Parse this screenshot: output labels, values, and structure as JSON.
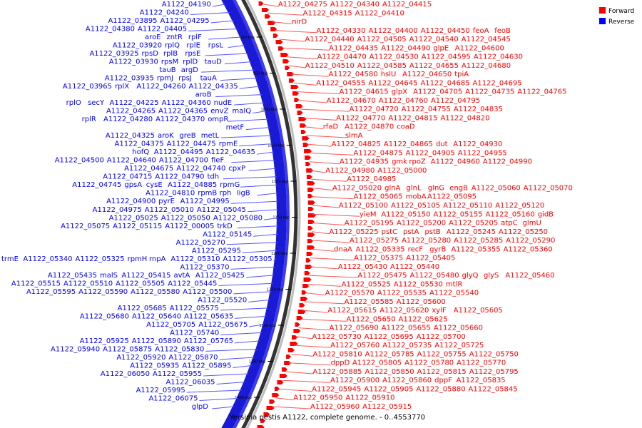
{
  "caption": "Yersinia pestis A1122, complete genome. - 0..4553770",
  "legend": [
    {
      "label": "Forward",
      "color": "#ff0000"
    },
    {
      "label": "Reverse",
      "color": "#0000ff"
    }
  ],
  "colors": {
    "forward": "#ff0000",
    "reverse": "#0000ff",
    "forward_leader": "#ff5555",
    "reverse_leader": "#5555ff"
  },
  "ticks": [
    "900 kbp",
    "950 kbp",
    "1000 kbp",
    "1050 kbp",
    "1100 kbp",
    "1150 kbp",
    "1200 kbp",
    "1250 kbp",
    "1300 kbp",
    "1350 kbp",
    "1400 kbp"
  ],
  "reverse_rows": [
    [
      "A1122_04190"
    ],
    [
      "A1122_04240"
    ],
    [
      "A1122_03895",
      "A1122_04295"
    ],
    [
      "A1122_04380",
      "A1122_04405"
    ],
    [
      "aroE",
      "zntR",
      "rplF"
    ],
    [
      "A1122_03920",
      "rplQ",
      "rplE",
      "rpsL"
    ],
    [
      "A1122_03925",
      "rpsD",
      "rplB",
      "rpsE"
    ],
    [
      "A1122_03930",
      "rpsM",
      "rplD",
      "tauD"
    ],
    [
      "tauB",
      "argD"
    ],
    [
      "A1122_03935",
      "rpmJ",
      "rpsJ",
      "tauA"
    ],
    [
      "A1122_03965",
      "rplX",
      "A1122_04260",
      "A1122_04335"
    ],
    [
      "aroB"
    ],
    [
      "rplO",
      "secY",
      "A1122_04225",
      "A1122_04360",
      "nudE"
    ],
    [
      "A1122_04265",
      "A1122_04365",
      "envZ",
      "malQ"
    ],
    [
      "rplR",
      "A1122_04280",
      "A1122_04370",
      "ompR"
    ],
    [
      "metF"
    ],
    [
      "A1122_04325",
      "aroK",
      "greB",
      "metL"
    ],
    [
      "A1122_04375",
      "A1122_04475",
      "rpmE"
    ],
    [
      "hofQ",
      "A1122_04495",
      "A1122_04635"
    ],
    [
      "A1122_04500",
      "A1122_04640",
      "A1122_04700",
      "fieF"
    ],
    [
      "A1122_04675",
      "A1122_04740",
      "cpxP"
    ],
    [
      "A1122_04715",
      "A1122_04790",
      "tdh"
    ],
    [
      "A1122_04745",
      "gpsA",
      "cysE",
      "A1122_04885",
      "rpmG"
    ],
    [
      "A1122_04810",
      "rpmB",
      "rph",
      "ligB"
    ],
    [
      "A1122_04900",
      "pyrE",
      "A1122_04995"
    ],
    [
      "A1122_04975",
      "A1122_05010",
      "A1122_05045"
    ],
    [
      "A1122_05025",
      "A1122_05050",
      "A1122_05080"
    ],
    [
      "A1122_05075",
      "A1122_05115",
      "A1122_00005",
      "trkD"
    ],
    [
      "A1122_05145"
    ],
    [
      "A1122_05270"
    ],
    [
      "A1122_05295"
    ],
    [
      "trmE",
      "A1122_05340",
      "A1122_05325",
      "rpmH",
      "rnpA",
      "A1122_05310",
      "A1122_05305"
    ],
    [
      "A1122_05370"
    ],
    [
      "A1122_05435",
      "malS",
      "A1122_05415",
      "avtA",
      "A1122_05425"
    ],
    [
      "A1122_05515",
      "A1122_05510",
      "A1122_05505",
      "A1122_05445"
    ],
    [
      "A1122_05595",
      "A1122_05590",
      "A1122_05580",
      "A1122_05500"
    ],
    [
      "A1122_05520"
    ],
    [
      "A1122_05685",
      "A1122_05575"
    ],
    [
      "A1122_05680",
      "A1122_05640",
      "A1122_05635"
    ],
    [
      "A1122_05705",
      "A1122_05675"
    ],
    [
      "A1122_05740"
    ],
    [
      "A1122_05925",
      "A1122_05890",
      "A1122_05765"
    ],
    [
      "A1122_05940",
      "A1122_05875",
      "A1122_05830"
    ],
    [
      "A1122_05920",
      "A1122_05870"
    ],
    [
      "A1122_05935",
      "A1122_05895"
    ],
    [
      "A1122_06050",
      "A1122_05955"
    ],
    [
      "A1122_06035"
    ],
    [
      "A1122_05995"
    ],
    [
      "A1122_06075"
    ],
    [
      "glpD"
    ]
  ],
  "forward_rows": [
    [
      "A1122_04275",
      "A1122_04340",
      "A1122_04415"
    ],
    [
      "A1122_04315",
      "A1122_04410"
    ],
    [
      "nirD"
    ],
    [
      "A1122_04330",
      "A1122_04400",
      "A1122_04450",
      "feoA",
      "feoB"
    ],
    [
      "A1122_04440",
      "A1122_04505",
      "A1122_04540",
      "A1122_04545"
    ],
    [
      "A1122_04435",
      "A1122_04490",
      "glpE",
      "A1122_04600"
    ],
    [
      "A1122_04470",
      "A1122_04530",
      "A1122_04595",
      "A1122_04630"
    ],
    [
      "A1122_04510",
      "A1122_04585",
      "A1122_04655",
      "A1122_04680"
    ],
    [
      "A1122_04580",
      "hslU",
      "A1122_04650",
      "tpiA"
    ],
    [
      "A1122_04555",
      "A1122_04645",
      "A1122_04685",
      "A1122_04695"
    ],
    [
      "A1122_04615",
      "glpX",
      "A1122_04705",
      "A1122_04735",
      "A1122_04765"
    ],
    [
      "A1122_04670",
      "A1122_04760",
      "A1122_04795"
    ],
    [
      "A1122_04720",
      "A1122_04755",
      "A1122_04835"
    ],
    [
      "A1122_04770",
      "A1122_04815",
      "A1122_04820"
    ],
    [
      "rfaD",
      "A1122_04870",
      "coaD"
    ],
    [
      "slmA"
    ],
    [
      "A1122_04825",
      "A1122_04865",
      "dut",
      "A1122_04930"
    ],
    [
      "A1122_04875",
      "A1122_04905",
      "A1122_04955"
    ],
    [
      "A1122_04935",
      "gmk",
      "rpoZ",
      "A1122_04960",
      "A1122_04990"
    ],
    [
      "A1122_04980",
      "A1122_05000"
    ],
    [
      "A1122_04985"
    ],
    [
      "A1122_05020",
      "glnA",
      "glnL",
      "glnG",
      "engB",
      "A1122_05060",
      "A1122_05070"
    ],
    [
      "A1122_05065",
      "mobA",
      "A1122_05095"
    ],
    [
      "A1122_05100",
      "A1122_05105",
      "A1122_05110",
      "A1122_05120"
    ],
    [
      "yieM",
      "A1122_05150",
      "A1122_05155",
      "A1122_05160",
      "gidB"
    ],
    [
      "A1122_05195",
      "A1122_05200",
      "A1122_05205",
      "atpC",
      "glmU"
    ],
    [
      "A1122_05225",
      "pstC",
      "pstA",
      "pstB",
      "A1122_05245",
      "A1122_05250"
    ],
    [
      "A1122_05275",
      "A1122_05280",
      "A1122_05285",
      "A1122_05290"
    ],
    [
      "dnaA",
      "A1122_05335",
      "recF",
      "gyrB",
      "A1122_05355",
      "A1122_05360"
    ],
    [
      "A1122_05375",
      "A1122_05405"
    ],
    [
      "A1122_05430",
      "A1122_05440"
    ],
    [
      "A1122_05475",
      "A1122_05480",
      "glyQ",
      "glyS",
      "A1122_05460"
    ],
    [
      "A1122_05525",
      "A1122_05530",
      "mtlR"
    ],
    [
      "A1122_05570",
      "A1122_05535",
      "A1122_05540"
    ],
    [
      "A1122_05585",
      "A1122_05600"
    ],
    [
      "A1122_05615",
      "A1122_05620",
      "xylF",
      "A1122_05605"
    ],
    [
      "A1122_05650",
      "A1122_05625"
    ],
    [
      "A1122_05690",
      "A1122_05655",
      "A1122_05660"
    ],
    [
      "A1122_05730",
      "A1122_05695",
      "A1122_05700"
    ],
    [
      "A1122_05760",
      "A1122_05735",
      "A1122_05725"
    ],
    [
      "A1122_05810",
      "A1122_05785",
      "A1122_05755",
      "A1122_05750"
    ],
    [
      "dppD",
      "A1122_05805",
      "A1122_05780",
      "A1122_05770"
    ],
    [
      "A1122_05885",
      "A1122_05850",
      "A1122_05815",
      "A1122_05795"
    ],
    [
      "A1122_05900",
      "A1122_05860",
      "dppF",
      "A1122_05835"
    ],
    [
      "A1122_05945",
      "A1122_05905",
      "A1122_05880",
      "A1122_05845"
    ],
    [
      "A1122_05950",
      "A1122_05910"
    ],
    [
      "A1122_05960",
      "A1122_05915"
    ]
  ]
}
